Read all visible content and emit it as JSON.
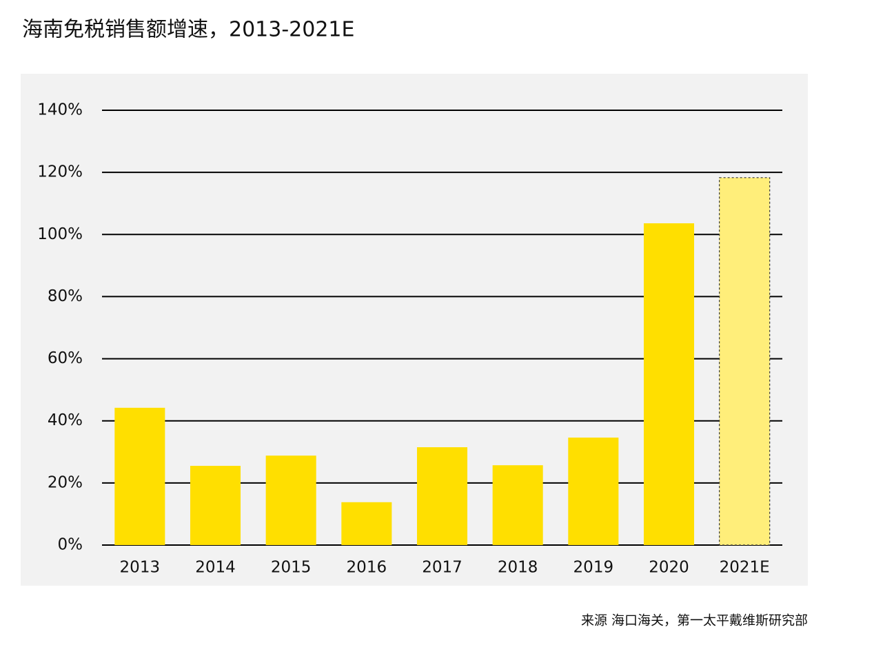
{
  "chart_data": {
    "type": "bar",
    "title": "海南免税销售额增速，2013-2021E",
    "source": "来源 海口海关，第一太平戴维斯研究部",
    "categories": [
      "2013",
      "2014",
      "2015",
      "2016",
      "2017",
      "2018",
      "2019",
      "2020",
      "2021E"
    ],
    "values": [
      44.2,
      25.5,
      28.8,
      13.8,
      31.5,
      25.7,
      34.6,
      103.6,
      118.3
    ],
    "colors": [
      "#ffdf00",
      "#ffdf00",
      "#ffdf00",
      "#ffdf00",
      "#ffdf00",
      "#ffdf00",
      "#ffdf00",
      "#ffdf00",
      "#ffee7a"
    ],
    "bar_styles": [
      "solid",
      "solid",
      "solid",
      "solid",
      "solid",
      "solid",
      "solid",
      "solid",
      "dashed"
    ],
    "ylim": [
      0,
      140
    ],
    "yticks": [
      {
        "value": 0,
        "label": "0%"
      },
      {
        "value": 20,
        "label": "20%"
      },
      {
        "value": 40,
        "label": "40%"
      },
      {
        "value": 60,
        "label": "60%"
      },
      {
        "value": 80,
        "label": "80%"
      },
      {
        "value": 100,
        "label": "100%"
      },
      {
        "value": 120,
        "label": "120%"
      },
      {
        "value": 140,
        "label": "140%"
      }
    ],
    "grid": true
  }
}
